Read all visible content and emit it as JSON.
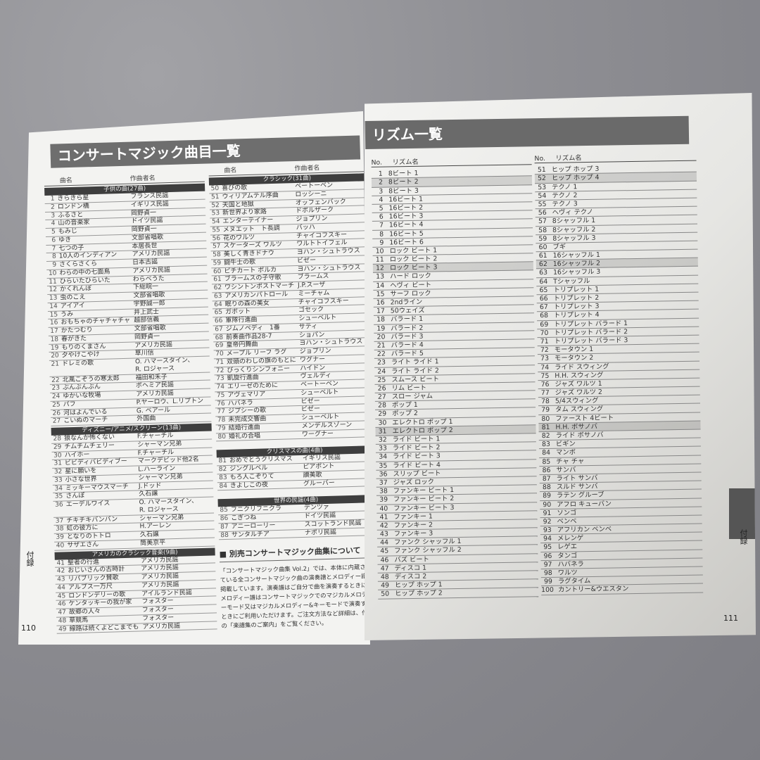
{
  "left": {
    "title": "コンサートマジック曲目一覧",
    "header": {
      "name": "曲名",
      "composer": "作曲者名"
    },
    "col1": [
      {
        "title": "子供の曲(27曲)",
        "songs": [
          [
            "1",
            "きらきら星",
            "フランス民謡"
          ],
          [
            "2",
            "ロンドン橋",
            "イギリス民謡"
          ],
          [
            "3",
            "ふるさと",
            "岡野貞一"
          ],
          [
            "4",
            "山の音楽家",
            "ドイツ民謡"
          ],
          [
            "5",
            "もみじ",
            "岡野貞一"
          ],
          [
            "6",
            "ゆき",
            "文部省唱歌"
          ],
          [
            "7",
            "七つの子",
            "本居長世"
          ],
          [
            "8",
            "10人のインディアン",
            "アメリカ民謡"
          ],
          [
            "9",
            "さくらさくら",
            "日本古謡"
          ],
          [
            "10",
            "わらの中の七面鳥",
            "アメリカ民謡"
          ],
          [
            "11",
            "ひらいたひらいた",
            "わらべうた"
          ],
          [
            "12",
            "かくれんぼ",
            "下総皖一"
          ],
          [
            "13",
            "虫のこえ",
            "文部省唱歌"
          ],
          [
            "14",
            "アイアイ",
            "宇野誠一郎"
          ],
          [
            "15",
            "うみ",
            "井上武士"
          ],
          [
            "16",
            "おもちゃのチャチャチャ",
            "越部信義"
          ],
          [
            "17",
            "かたつむり",
            "文部省唱歌"
          ],
          [
            "18",
            "春がきた",
            "岡野貞一"
          ],
          [
            "19",
            "もりのくまさん",
            "アメリカ民謡"
          ],
          [
            "20",
            "夕やけこやけ",
            "草川信"
          ],
          [
            "21",
            "ドレミの歌",
            "O. ハマースタイン、\nR. ロジャース"
          ],
          [
            "22",
            "北風こぞうの寒太郎",
            "福田和禾子"
          ],
          [
            "23",
            "ぶんぶんぶん",
            "ボヘミア民謡"
          ],
          [
            "24",
            "ゆかいな牧場",
            "アメリカ民謡"
          ],
          [
            "25",
            "パフ",
            "P.ヤーロウ、L.リプトン"
          ],
          [
            "26",
            "河はよんでいる",
            "G. ベアール"
          ],
          [
            "27",
            "こいぬのマーチ",
            "外国曲"
          ]
        ]
      },
      {
        "title": "ディズニー/アニメ/スクリーン(13曲)",
        "songs": [
          [
            "28",
            "狼なんか怖くない",
            "F.チャーチル"
          ],
          [
            "29",
            "チムチムチェリー",
            "シャーマン兄弟"
          ],
          [
            "30",
            "ハイホー",
            "F.チャーチル"
          ],
          [
            "31",
            "ビビディバビディブー",
            "マークデビッド他2名"
          ],
          [
            "32",
            "星に願いを",
            "L.ハーライン"
          ],
          [
            "33",
            "小さな世界",
            "シャーマン兄弟"
          ],
          [
            "34",
            "ミッキーマウスマーチ",
            "J.ドッド"
          ],
          [
            "35",
            "さんぽ",
            "久石譲"
          ],
          [
            "36",
            "エーデルワイス",
            "O. ハマースタイン、\nR. ロジャース"
          ],
          [
            "37",
            "チキチキバンバン",
            "シャーマン兄弟"
          ],
          [
            "38",
            "虹の彼方に",
            "H.アーレン"
          ],
          [
            "39",
            "となりのトトロ",
            "久石譲"
          ],
          [
            "40",
            "サザエさん",
            "筒美京平"
          ]
        ]
      },
      {
        "title": "アメリカのクラシック音楽(9曲)",
        "songs": [
          [
            "41",
            "聖者の行進",
            "アメリカ民謡"
          ],
          [
            "42",
            "おじいさんの古時計",
            "アメリカ民謡"
          ],
          [
            "43",
            "リパブリック賛歌",
            "アメリカ民謡"
          ],
          [
            "44",
            "アルプス一万尺",
            "アメリカ民謡"
          ],
          [
            "45",
            "ロンドンデリーの歌",
            "アイルランド民謡"
          ],
          [
            "46",
            "ケンタッキーの我が家",
            "フォスター"
          ],
          [
            "47",
            "故郷の人々",
            "フォスター"
          ],
          [
            "48",
            "草競馬",
            "フォスター"
          ],
          [
            "49",
            "線路は続くよどこまでも",
            "アメリカ民謡"
          ]
        ]
      }
    ],
    "col2": [
      {
        "title": "クラシック(31曲)",
        "songs": [
          [
            "50",
            "喜びの歌",
            "ベートーベン"
          ],
          [
            "51",
            "ウィリアムテル序曲",
            "ロッシーニ"
          ],
          [
            "52",
            "天国と地獄",
            "オッフェンバック"
          ],
          [
            "53",
            "新世界より家路",
            "ドボルザーク"
          ],
          [
            "54",
            "エンターテイナー",
            "ジョプリン"
          ],
          [
            "55",
            "メヌエット　ト長調",
            "バッハ"
          ],
          [
            "56",
            "花のワルツ",
            "チャイコフスキー"
          ],
          [
            "57",
            "スケーターズ ワルツ",
            "ワルトトイフェル"
          ],
          [
            "58",
            "美しく青きドナウ",
            "ヨハン・シュトラウス"
          ],
          [
            "59",
            "闘牛士の歌",
            "ビゼー"
          ],
          [
            "60",
            "ピチカート ポルカ",
            "ヨハン・シュトラウス"
          ],
          [
            "61",
            "ブラームスの子守歌",
            "ブラームス"
          ],
          [
            "62",
            "ワシントンポストマーチ",
            "J.P.スーザ"
          ],
          [
            "63",
            "アメリカンパトロール",
            "ミーチャム"
          ],
          [
            "64",
            "眠りの森の美女",
            "チャイコフスキー"
          ],
          [
            "65",
            "ガボット",
            "ゴセック"
          ],
          [
            "66",
            "軍隊行進曲",
            "シューベルト"
          ],
          [
            "67",
            "ジムノペディ　1番",
            "サティ"
          ],
          [
            "68",
            "前奏曲作品28-7",
            "ショパン"
          ],
          [
            "69",
            "皇帝円舞曲",
            "ヨハン・シュトラウス"
          ],
          [
            "70",
            "メープル リーフ ラグ",
            "ジョプリン"
          ],
          [
            "71",
            "双頭のわしの旗のもとに",
            "ワグナー"
          ],
          [
            "72",
            "びっくりシンフォニー",
            "ハイドン"
          ],
          [
            "73",
            "凱旋行進曲",
            "ヴェルディ"
          ],
          [
            "74",
            "エリーゼのために",
            "ベートーベン"
          ],
          [
            "75",
            "アヴェマリア",
            "シューベルト"
          ],
          [
            "76",
            "ハバネラ",
            "ビゼー"
          ],
          [
            "77",
            "ジプシーの歌",
            "ビゼー"
          ],
          [
            "78",
            "未完成交響曲",
            "シューベルト"
          ],
          [
            "79",
            "結婚行進曲",
            "メンデルスゾーン"
          ],
          [
            "80",
            "婚礼の合唱",
            "ワーグナー"
          ]
        ]
      },
      {
        "title": "クリスマスの曲(4曲)",
        "songs": [
          [
            "81",
            "おめでとうクリスマス",
            "イギリス民謡"
          ],
          [
            "82",
            "ジングルベル",
            "ピアポント"
          ],
          [
            "83",
            "もろ人こぞりて",
            "讃美歌"
          ],
          [
            "84",
            "きよしこの夜",
            "グルーバー"
          ]
        ]
      },
      {
        "title": "世界の民謡(4曲)",
        "songs": [
          [
            "85",
            "フニクリフニクラ",
            "デンツァ"
          ],
          [
            "86",
            "こぎつね",
            "ドイツ民謡"
          ],
          [
            "87",
            "アニーローリー",
            "スコットランド民謡"
          ],
          [
            "88",
            "サンタルチア",
            "ナポリ民謡"
          ]
        ]
      }
    ],
    "note": {
      "heading": "■ 別売コンサートマジック曲集について",
      "body": "「コンサートマジック曲集 Vol.2」では、本体に内蔵されている全コンサートマジック曲の演奏譜とメロディー譜を掲載しています。演奏譜はご自分で曲を演奏するときに、メロディー譜はコンサートマジックでのマジカルメロディーモード又はマジカルメロディー&キーモードで演奏するときにご利用いただけます。ご注文方法など詳細は、付属の「楽譜集のご案内」をご覧ください。"
    },
    "side_label": "付録",
    "page_number": "110"
  },
  "right": {
    "title": "リズム一覧",
    "header": {
      "no": "No.",
      "name": "リズム名"
    },
    "rhythms": [
      "8ビート 1",
      "8ビート 2",
      "8ビート 3",
      "16ビート 1",
      "16ビート 2",
      "16ビート 3",
      "16ビート 4",
      "16ビート 5",
      "16ビート 6",
      "ロック ビート 1",
      "ロック ビート 2",
      "ロック ビート 3",
      "ハード ロック",
      "ヘヴィ ビート",
      "サーフ ロック",
      "2ndライン",
      "50ウェイズ",
      "バラード 1",
      "バラード 2",
      "バラード 3",
      "バラード 4",
      "バラード 5",
      "ライト ライド 1",
      "ライト ライド 2",
      "スムース ビート",
      "リム ビート",
      "スロー ジャム",
      "ポップ 1",
      "ポップ 2",
      "エレクトロ ポップ 1",
      "エレクトロ ポップ 2",
      "ライド ビート 1",
      "ライド ビート 2",
      "ライド ビート 3",
      "ライド ビート 4",
      "スリップ ビート",
      "ジャズ ロック",
      "ファンキー ビート 1",
      "ファンキー ビート 2",
      "ファンキー ビート 3",
      "ファンキー 1",
      "ファンキー 2",
      "ファンキー 3",
      "ファンク シャッフル 1",
      "ファンク シャッフル 2",
      "バズ ビート",
      "ディスコ 1",
      "ディスコ 2",
      "ヒップ ホップ 1",
      "ヒップ ホップ 2",
      "ヒップ ホップ 3",
      "ヒップ ホップ 4",
      "テクノ 1",
      "テクノ 2",
      "テクノ 3",
      "ヘヴィ テクノ",
      "8シャッフル 1",
      "8シャッフル 2",
      "8シャッフル 3",
      "ブギ",
      "16シャッフル 1",
      "16シャッフル 2",
      "16シャッフル 3",
      "Tシャッフル",
      "トリプレット 1",
      "トリプレット 2",
      "トリプレット 3",
      "トリプレット 4",
      "トリプレット バラード 1",
      "トリプレット バラード 2",
      "トリプレット バラード 3",
      "モータウン 1",
      "モータウン 2",
      "ライド スウィング",
      "H.H. スウィング",
      "ジャズ ワルツ 1",
      "ジャズ ワルツ 2",
      "5/4スウィング",
      "タム スウィング",
      "ファースト 4ビート",
      "H.H. ボサノバ",
      "ライド ボサノバ",
      "ビギン",
      "マンボ",
      "チャ チャ",
      "サンバ",
      "ライト サンバ",
      "スルド サンバ",
      "ラテン グルーブ",
      "アフロ キューバン",
      "ソンゴ",
      "ベンベ",
      "アフリカン ベンベ",
      "メレンゲ",
      "レゲエ",
      "タンゴ",
      "ハバネラ",
      "ワルツ",
      "ラグタイム",
      "カントリー&ウエスタン"
    ],
    "side_label": "付録",
    "page_number": "111"
  }
}
